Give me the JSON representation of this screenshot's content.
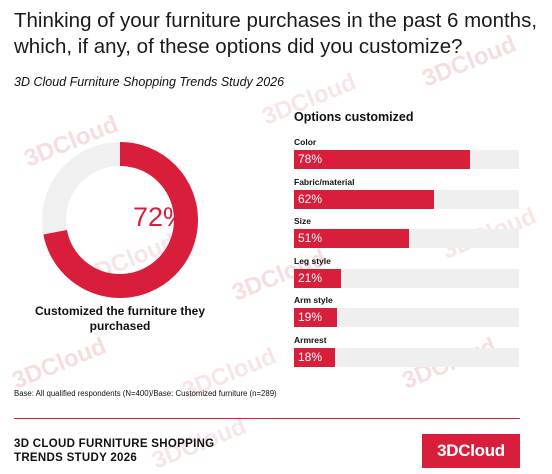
{
  "header": {
    "title": "Thinking of your furniture purchases in the past 6 months, which, if any, of these options did you customize?",
    "subtitle": "3D Cloud Furniture Shopping Trends Study 2026"
  },
  "watermark": {
    "text": "3DCloud"
  },
  "colors": {
    "accent": "#d81e3a",
    "track": "#efefef",
    "donut_remainder": "#f0f0f0"
  },
  "chart_data": [
    {
      "type": "pie",
      "subtype": "donut",
      "values": [
        72,
        28
      ],
      "categories": [
        "Customized the furniture they purchased",
        ""
      ],
      "center_label": "72%",
      "caption": "Customized the furniture they purchased"
    },
    {
      "type": "bar",
      "orientation": "horizontal",
      "title": "Options customized",
      "categories": [
        "Color",
        "Fabric/material",
        "Size",
        "Leg style",
        "Arm style",
        "Armrest"
      ],
      "values": [
        78,
        62,
        51,
        21,
        19,
        18
      ],
      "value_labels": [
        "78%",
        "62%",
        "51%",
        "21%",
        "19%",
        "18%"
      ],
      "xlim": [
        0,
        100
      ]
    }
  ],
  "footer": {
    "base_note": "Base: All qualified respondents (N=400)/Base: Customized furniture (n=289)",
    "study_title_line1": "3D CLOUD FURNITURE SHOPPING",
    "study_title_line2": "TRENDS STUDY 2026",
    "logo_text": "3DCloud"
  }
}
